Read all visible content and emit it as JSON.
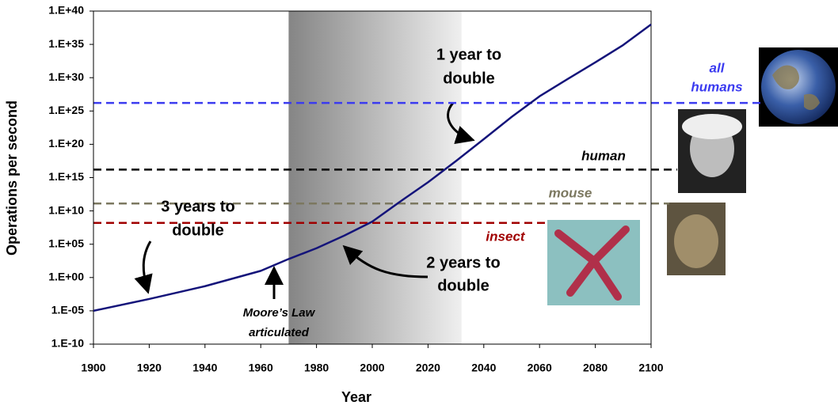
{
  "chart_data": {
    "type": "line",
    "xlabel": "Year",
    "ylabel": "Operations per second",
    "log_y": true,
    "grid": false,
    "xlim": [
      1900,
      2100
    ],
    "xticks": [
      1900,
      1920,
      1940,
      1960,
      1980,
      2000,
      2020,
      2040,
      2060,
      2080,
      2100
    ],
    "ylim": [
      1e-10,
      1e+40
    ],
    "yticks": [
      {
        "value": 1e-10,
        "label": "1.E-10"
      },
      {
        "value": 1e-05,
        "label": "1.E-05"
      },
      {
        "value": 1,
        "label": "1.E+00"
      },
      {
        "value": 100000.0,
        "label": "1.E+05"
      },
      {
        "value": 10000000000.0,
        "label": "1.E+10"
      },
      {
        "value": 1000000000000000.0,
        "label": "1.E+15"
      },
      {
        "value": 1e+20,
        "label": "1.E+20"
      },
      {
        "value": 1e+25,
        "label": "1.E+25"
      },
      {
        "value": 1e+30,
        "label": "1.E+30"
      },
      {
        "value": 1e+35,
        "label": "1.E+35"
      },
      {
        "value": 1e+40,
        "label": "1.E+40"
      }
    ],
    "x": [
      1900,
      1920,
      1940,
      1960,
      1970,
      1980,
      1990,
      2000,
      2010,
      2020,
      2030,
      2040,
      2050,
      2060,
      2070,
      2080,
      2090,
      2100
    ],
    "series": [
      {
        "color": "#14147a",
        "values": [
          1e-05,
          0.0006,
          0.05,
          10.0,
          600.0,
          25000.0,
          2000000.0,
          250000000.0,
          250000000000.0,
          200000000000000.0,
          3e+17,
          6e+20,
          1.3e+24,
          1.6e+27,
          6e+29,
          2e+32,
          8e+34,
          1e+38
        ]
      }
    ],
    "shaded_span": [
      1970,
      2032
    ],
    "reference_lines": [
      {
        "label": [
          "all",
          "humans"
        ],
        "value": 1.6e+26,
        "color": "#3b3bf0"
      },
      {
        "label": [
          "human"
        ],
        "value": 1.6e+16,
        "color": "#000000"
      },
      {
        "label": [
          "mouse"
        ],
        "value": 130000000000.0,
        "color": "#7c7860"
      },
      {
        "label": [
          "insect"
        ],
        "value": 160000000.0,
        "color": "#a00000"
      }
    ],
    "annotations": [
      {
        "lines": [
          "1 year to",
          "double"
        ]
      },
      {
        "lines": [
          "3 years to",
          "double"
        ]
      },
      {
        "lines": [
          "2 years to",
          "double"
        ]
      },
      {
        "lines": [
          "Moore’s Law",
          "articulated"
        ]
      }
    ]
  }
}
